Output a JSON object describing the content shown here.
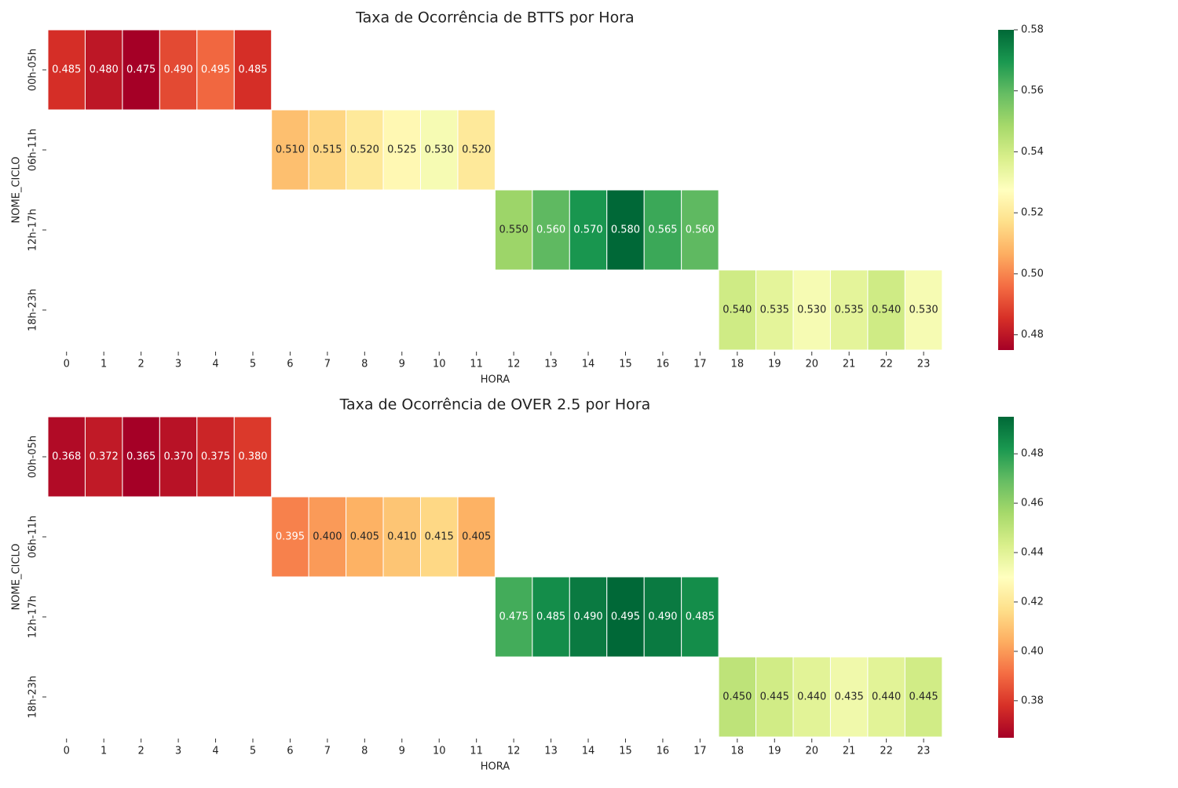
{
  "chart_data": [
    {
      "type": "heatmap",
      "title": "Taxa de Ocorrência de BTTS por Hora",
      "xlabel": "HORA",
      "ylabel": "NOME_CICLO",
      "x_categories": [
        "0",
        "1",
        "2",
        "3",
        "4",
        "5",
        "6",
        "7",
        "8",
        "9",
        "10",
        "11",
        "12",
        "13",
        "14",
        "15",
        "16",
        "17",
        "18",
        "19",
        "20",
        "21",
        "22",
        "23"
      ],
      "y_categories": [
        "00h-05h",
        "06h-11h",
        "12h-17h",
        "18h-23h"
      ],
      "values": [
        [
          0.485,
          0.48,
          0.475,
          0.49,
          0.495,
          0.485,
          null,
          null,
          null,
          null,
          null,
          null,
          null,
          null,
          null,
          null,
          null,
          null,
          null,
          null,
          null,
          null,
          null,
          null
        ],
        [
          null,
          null,
          null,
          null,
          null,
          null,
          0.51,
          0.515,
          0.52,
          0.525,
          0.53,
          0.52,
          null,
          null,
          null,
          null,
          null,
          null,
          null,
          null,
          null,
          null,
          null,
          null
        ],
        [
          null,
          null,
          null,
          null,
          null,
          null,
          null,
          null,
          null,
          null,
          null,
          null,
          0.55,
          0.56,
          0.57,
          0.58,
          0.565,
          0.56,
          null,
          null,
          null,
          null,
          null,
          null
        ],
        [
          null,
          null,
          null,
          null,
          null,
          null,
          null,
          null,
          null,
          null,
          null,
          null,
          null,
          null,
          null,
          null,
          null,
          null,
          0.54,
          0.535,
          0.53,
          0.535,
          0.54,
          0.53
        ]
      ],
      "colormap": "RdYlGn",
      "vmin": 0.475,
      "vmax": 0.58,
      "colorbar_ticks": [
        "0.48",
        "0.50",
        "0.52",
        "0.54",
        "0.56",
        "0.58"
      ],
      "annotation_format": "3 decimals"
    },
    {
      "type": "heatmap",
      "title": "Taxa de Ocorrência de OVER 2.5 por Hora",
      "xlabel": "HORA",
      "ylabel": "NOME_CICLO",
      "x_categories": [
        "0",
        "1",
        "2",
        "3",
        "4",
        "5",
        "6",
        "7",
        "8",
        "9",
        "10",
        "11",
        "12",
        "13",
        "14",
        "15",
        "16",
        "17",
        "18",
        "19",
        "20",
        "21",
        "22",
        "23"
      ],
      "y_categories": [
        "00h-05h",
        "06h-11h",
        "12h-17h",
        "18h-23h"
      ],
      "values": [
        [
          0.368,
          0.372,
          0.365,
          0.37,
          0.375,
          0.38,
          null,
          null,
          null,
          null,
          null,
          null,
          null,
          null,
          null,
          null,
          null,
          null,
          null,
          null,
          null,
          null,
          null,
          null
        ],
        [
          null,
          null,
          null,
          null,
          null,
          null,
          0.395,
          0.4,
          0.405,
          0.41,
          0.415,
          0.405,
          null,
          null,
          null,
          null,
          null,
          null,
          null,
          null,
          null,
          null,
          null,
          null
        ],
        [
          null,
          null,
          null,
          null,
          null,
          null,
          null,
          null,
          null,
          null,
          null,
          null,
          0.475,
          0.485,
          0.49,
          0.495,
          0.49,
          0.485,
          null,
          null,
          null,
          null,
          null,
          null
        ],
        [
          null,
          null,
          null,
          null,
          null,
          null,
          null,
          null,
          null,
          null,
          null,
          null,
          null,
          null,
          null,
          null,
          null,
          null,
          0.45,
          0.445,
          0.44,
          0.435,
          0.44,
          0.445
        ]
      ],
      "colormap": "RdYlGn",
      "vmin": 0.365,
      "vmax": 0.495,
      "colorbar_ticks": [
        "0.38",
        "0.40",
        "0.42",
        "0.44",
        "0.46",
        "0.48"
      ],
      "annotation_format": "3 decimals"
    }
  ]
}
